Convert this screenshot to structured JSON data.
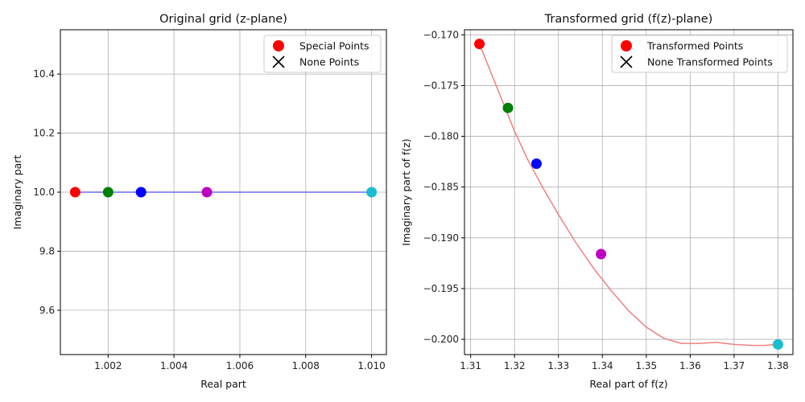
{
  "chart_data": [
    {
      "type": "scatter",
      "title": "Original grid (z-plane)",
      "xlabel": "Real part",
      "ylabel": "Imaginary part",
      "xlim": [
        1.00055,
        1.01045
      ],
      "ylim": [
        9.45,
        10.55
      ],
      "xticks": [
        "1.002",
        "1.004",
        "1.006",
        "1.008",
        "1.010"
      ],
      "xtick_values": [
        1.002,
        1.004,
        1.006,
        1.008,
        1.01
      ],
      "yticks": [
        "9.6",
        "9.8",
        "10.0",
        "10.2",
        "10.4"
      ],
      "ytick_values": [
        9.6,
        9.8,
        10.0,
        10.2,
        10.4
      ],
      "grid": true,
      "line": {
        "color": "#6b6bf0",
        "x": [
          1.001,
          1.01
        ],
        "y": [
          10.0,
          10.0
        ]
      },
      "points": [
        {
          "x": 1.001,
          "y": 10.0,
          "color": "#ff0000"
        },
        {
          "x": 1.002,
          "y": 10.0,
          "color": "#008000"
        },
        {
          "x": 1.003,
          "y": 10.0,
          "color": "#0000ff"
        },
        {
          "x": 1.005,
          "y": 10.0,
          "color": "#c000c0"
        },
        {
          "x": 1.01,
          "y": 10.0,
          "color": "#17becf"
        }
      ],
      "legend": {
        "placement": "top-right",
        "entries": [
          {
            "label": "Special Points",
            "marker": "circle",
            "color": "#ff0000"
          },
          {
            "label": "None Points",
            "marker": "x",
            "color": "#000000"
          }
        ]
      }
    },
    {
      "type": "scatter",
      "title": "Transformed grid (f(z)-plane)",
      "xlabel": "Real part of f(z)",
      "ylabel": "Imaginary part of f(z)",
      "xlim": [
        1.3086,
        1.3834
      ],
      "ylim": [
        -0.2015,
        -0.1695
      ],
      "xticks": [
        "1.31",
        "1.32",
        "1.33",
        "1.34",
        "1.35",
        "1.36",
        "1.37",
        "1.38"
      ],
      "xtick_values": [
        1.31,
        1.32,
        1.33,
        1.34,
        1.35,
        1.36,
        1.37,
        1.38
      ],
      "yticks": [
        "−0.200",
        "−0.195",
        "−0.190",
        "−0.185",
        "−0.180",
        "−0.175",
        "−0.170"
      ],
      "ytick_values": [
        -0.2,
        -0.195,
        -0.19,
        -0.185,
        -0.18,
        -0.175,
        -0.17
      ],
      "grid": true,
      "curve": {
        "color": "#f08080",
        "x": [
          1.312,
          1.3147,
          1.3175,
          1.32,
          1.323,
          1.3265,
          1.33,
          1.334,
          1.338,
          1.342,
          1.346,
          1.35,
          1.354,
          1.358,
          1.362,
          1.366,
          1.37,
          1.374,
          1.377,
          1.38
        ],
        "y": [
          -0.1709,
          -0.1738,
          -0.1768,
          -0.1795,
          -0.1823,
          -0.1851,
          -0.1877,
          -0.1905,
          -0.193,
          -0.1952,
          -0.1972,
          -0.1988,
          -0.1999,
          -0.2004,
          -0.2004,
          -0.2003,
          -0.2005,
          -0.2006,
          -0.2006,
          -0.2005
        ]
      },
      "points": [
        {
          "x": 1.312,
          "y": -0.1709,
          "color": "#ff0000"
        },
        {
          "x": 1.3185,
          "y": -0.1772,
          "color": "#008000"
        },
        {
          "x": 1.325,
          "y": -0.1827,
          "color": "#0000ff"
        },
        {
          "x": 1.3397,
          "y": -0.1916,
          "color": "#c000c0"
        },
        {
          "x": 1.38,
          "y": -0.2005,
          "color": "#17becf"
        }
      ],
      "legend": {
        "placement": "top-right",
        "entries": [
          {
            "label": "Transformed Points",
            "marker": "circle",
            "color": "#ff0000"
          },
          {
            "label": "None Transformed Points",
            "marker": "x",
            "color": "#000000"
          }
        ]
      }
    }
  ]
}
